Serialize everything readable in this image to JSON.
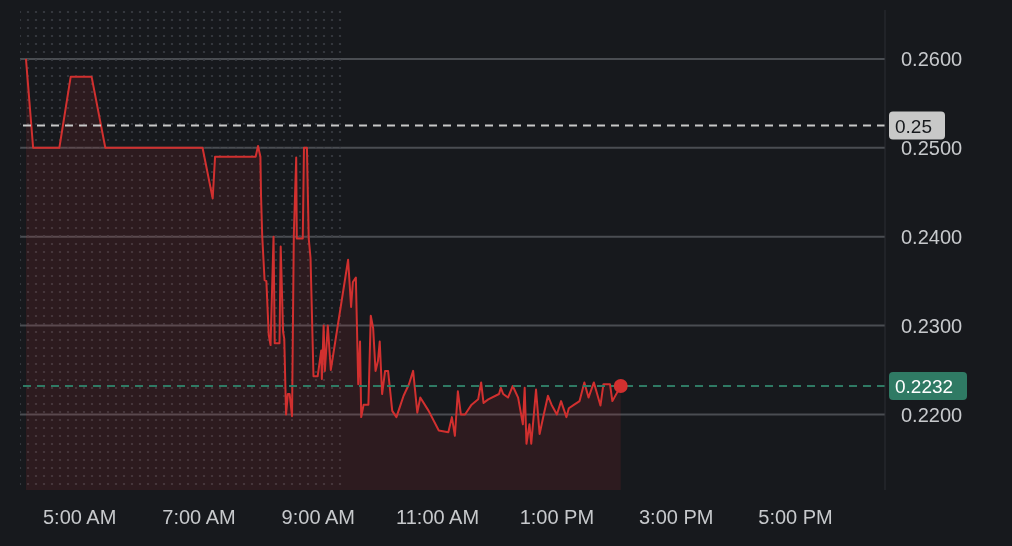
{
  "chart_data": {
    "type": "area",
    "xlim": [
      4,
      18.5
    ],
    "ylim": [
      0.2115,
      0.2655
    ],
    "xticks": [
      {
        "value": 5,
        "label": "5:00 AM"
      },
      {
        "value": 7,
        "label": "7:00 AM"
      },
      {
        "value": 9,
        "label": "9:00 AM"
      },
      {
        "value": 11,
        "label": "11:00 AM"
      },
      {
        "value": 13,
        "label": "1:00 PM"
      },
      {
        "value": 15,
        "label": "3:00 PM"
      },
      {
        "value": 17,
        "label": "5:00 PM"
      }
    ],
    "yticks": [
      {
        "value": 0.22,
        "label": "0.2200"
      },
      {
        "value": 0.23,
        "label": "0.2300"
      },
      {
        "value": 0.24,
        "label": "0.2400"
      },
      {
        "value": 0.25,
        "label": "0.2500"
      },
      {
        "value": 0.26,
        "label": "0.2600"
      }
    ],
    "grid": "y",
    "legend": false,
    "line_style": "solid",
    "series": [
      {
        "color": "#d1302f",
        "x": [
          4.1,
          4.22,
          4.66,
          4.85,
          5.2,
          5.43,
          7.06,
          7.23,
          7.27,
          7.95,
          7.99,
          8.03,
          8.04,
          8.06,
          8.1,
          8.13,
          8.17,
          8.2,
          8.25,
          8.27,
          8.35,
          8.37,
          8.41,
          8.43,
          8.46,
          8.49,
          8.52,
          8.56,
          8.59,
          8.63,
          8.64,
          8.74,
          8.76,
          8.81,
          8.84,
          8.87,
          8.92,
          8.99,
          9.05,
          9.06,
          9.09,
          9.11,
          9.16,
          9.21,
          9.5,
          9.55,
          9.58,
          9.63,
          9.67,
          9.7,
          9.72,
          9.76,
          9.84,
          9.88,
          9.92,
          9.96,
          10.0,
          10.03,
          10.07,
          10.12,
          10.17,
          10.24,
          10.31,
          10.38,
          10.43,
          10.52,
          10.59,
          10.66,
          10.71,
          10.85,
          11.02,
          11.18,
          11.24,
          11.29,
          11.34,
          11.39,
          11.46,
          11.57,
          11.68,
          11.73,
          11.77,
          11.85,
          12.03,
          12.06,
          12.1,
          12.18,
          12.26,
          12.35,
          12.43,
          12.46,
          12.49,
          12.54,
          12.57,
          12.65,
          12.71,
          12.78,
          12.85,
          12.91,
          13.0,
          13.07,
          13.16,
          13.2,
          13.29,
          13.38,
          13.46,
          13.53,
          13.62,
          13.73,
          13.78,
          13.89,
          13.93,
          14.07
        ],
        "values": [
          0.26,
          0.25,
          0.25,
          0.258,
          0.258,
          0.25,
          0.25,
          0.2443,
          0.249,
          0.249,
          0.2502,
          0.249,
          0.2447,
          0.2401,
          0.2351,
          0.235,
          0.2289,
          0.2278,
          0.24,
          0.228,
          0.228,
          0.2389,
          0.2293,
          0.2285,
          0.22,
          0.2223,
          0.2223,
          0.2198,
          0.2402,
          0.2489,
          0.2398,
          0.2398,
          0.25,
          0.25,
          0.2398,
          0.2376,
          0.2243,
          0.2243,
          0.2272,
          0.224,
          0.23,
          0.2249,
          0.23,
          0.225,
          0.2374,
          0.2321,
          0.2349,
          0.2354,
          0.2234,
          0.2282,
          0.2197,
          0.2211,
          0.2211,
          0.2311,
          0.2297,
          0.2249,
          0.226,
          0.2282,
          0.2223,
          0.2249,
          0.2249,
          0.2204,
          0.2197,
          0.2211,
          0.2221,
          0.2234,
          0.2249,
          0.2202,
          0.2219,
          0.2204,
          0.2182,
          0.218,
          0.2197,
          0.2176,
          0.2226,
          0.22,
          0.22,
          0.2211,
          0.2217,
          0.2236,
          0.2213,
          0.2217,
          0.2223,
          0.223,
          0.2223,
          0.2219,
          0.2232,
          0.2219,
          0.2189,
          0.223,
          0.2167,
          0.2189,
          0.2167,
          0.2228,
          0.2178,
          0.22,
          0.2221,
          0.2211,
          0.22,
          0.2215,
          0.2197,
          0.2207,
          0.2211,
          0.2215,
          0.2236,
          0.2219,
          0.2236,
          0.221,
          0.2234,
          0.2234,
          0.2215,
          0.2232
        ]
      },
      {
        "type": "scatter",
        "color": "#d1302f",
        "marker": "circle",
        "x": [
          14.07
        ],
        "values": [
          0.2232
        ]
      }
    ],
    "ref_lines": [
      {
        "axis": "y",
        "value": 0.2525,
        "label": "0.25",
        "color": "#c8c8c8",
        "line_style": "dashed"
      },
      {
        "axis": "y",
        "value": 0.2232,
        "label": "0.2232",
        "color": "#2f7a64",
        "line_style": "dashed"
      }
    ],
    "bands": [
      {
        "axis": "x",
        "from": 4,
        "to": 9.45,
        "color": "#3a3d44"
      }
    ]
  }
}
